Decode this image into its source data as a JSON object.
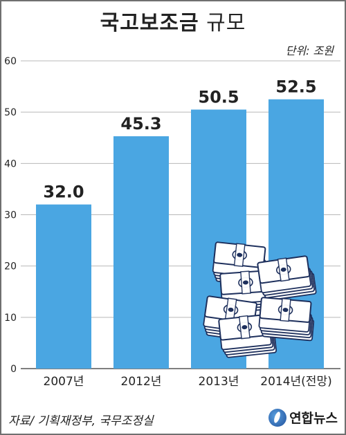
{
  "header": {
    "title_bold": "국고보조금",
    "title_light": "규모",
    "unit": "단위: 조원"
  },
  "footer": {
    "source": "자료/ 기획재정부, 국무조정실",
    "logo_text": "연합뉴스"
  },
  "icons": {
    "money": "money-stack-icon",
    "logo": "yonhap-logo-icon"
  },
  "chart_data": {
    "type": "bar",
    "categories": [
      "2007년",
      "2012년",
      "2013년",
      "2014년(전망)"
    ],
    "values": [
      32.0,
      45.3,
      50.5,
      52.5
    ],
    "value_labels": [
      "32.0",
      "45.3",
      "50.5",
      "52.5"
    ],
    "yticks": [
      "0",
      "10",
      "20",
      "30",
      "40",
      "50",
      "60"
    ],
    "ylim": [
      0,
      60
    ],
    "grid": true,
    "colors": {
      "bar": "#4aa6e2",
      "grid": "#b8b8b8",
      "axis": "#555555",
      "text": "#222222"
    }
  }
}
